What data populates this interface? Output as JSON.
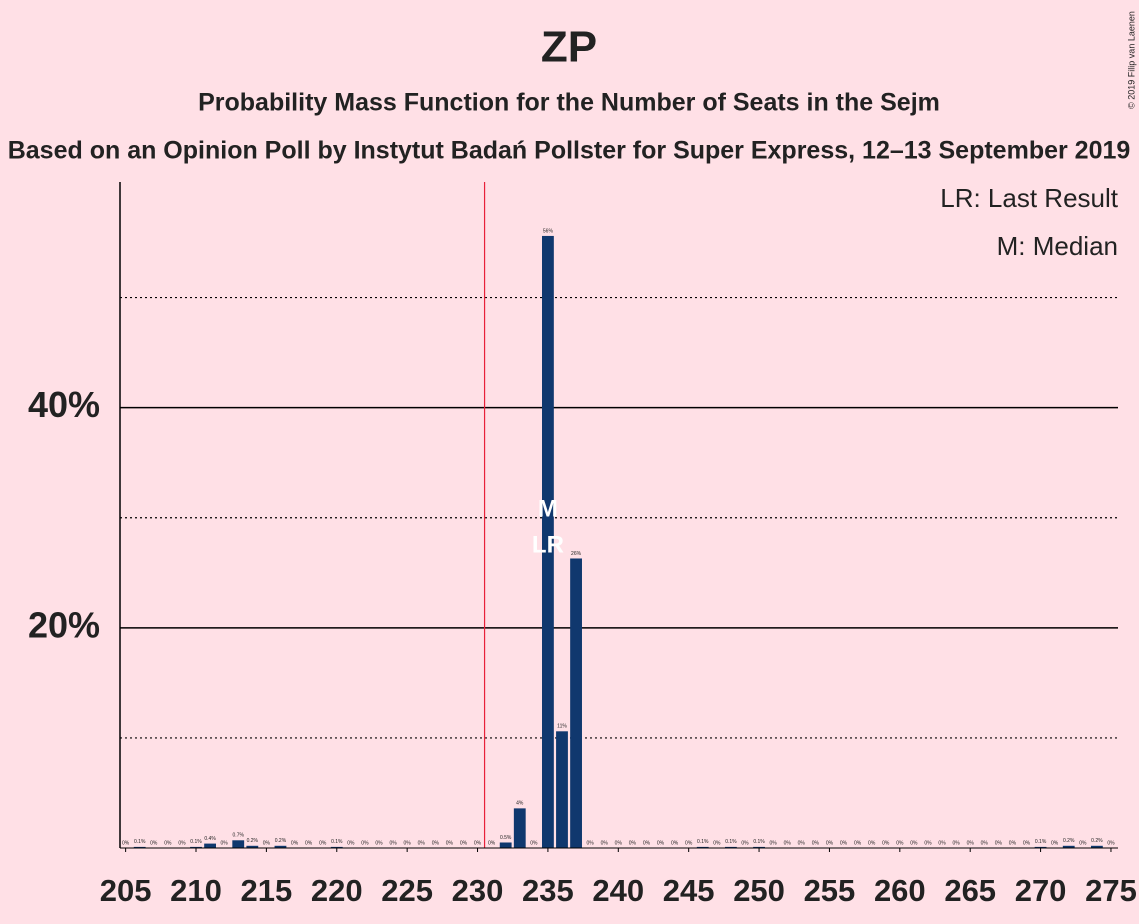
{
  "chart_data": {
    "type": "bar",
    "title": "ZP",
    "subtitle": "Probability Mass Function for the Number of Seats in the Sejm",
    "subtitle2": "Based on an Opinion Poll by Instytut Badań Pollster for Super Express, 12–13 September 2019",
    "copyright": "© 2019 Filip van Laenen",
    "legend": [
      "LR: Last Result",
      "M: Median"
    ],
    "legend_position": "upper right",
    "median_label": "M",
    "last_result_label": "LR",
    "median": 235,
    "last_result": 235,
    "majority": 231,
    "majority_color": "#e8203a",
    "color": "#10386e",
    "x": [
      205,
      206,
      207,
      208,
      209,
      210,
      211,
      212,
      213,
      214,
      215,
      216,
      217,
      218,
      219,
      220,
      221,
      222,
      223,
      224,
      225,
      226,
      227,
      228,
      229,
      230,
      231,
      232,
      233,
      234,
      235,
      236,
      237,
      238,
      239,
      240,
      241,
      242,
      243,
      244,
      245,
      246,
      247,
      248,
      249,
      250,
      251,
      252,
      253,
      254,
      255,
      256,
      257,
      258,
      259,
      260,
      261,
      262,
      263,
      264,
      265,
      266,
      267,
      268,
      269,
      270,
      271,
      272,
      273,
      274,
      275
    ],
    "values": [
      0,
      0.1,
      0,
      0,
      0,
      0.1,
      0.4,
      0,
      0.7,
      0.2,
      0,
      0.2,
      0,
      0,
      0,
      0.1,
      0,
      0,
      0,
      0,
      0,
      0,
      0,
      0,
      0,
      0,
      0,
      0.5,
      3.6,
      0,
      55.6,
      10.6,
      26.3,
      0,
      0,
      0,
      0,
      0,
      0,
      0,
      0,
      0.1,
      0,
      0.1,
      0,
      0.1,
      0,
      0,
      0,
      0,
      0,
      0,
      0,
      0,
      0,
      0,
      0,
      0,
      0,
      0,
      0,
      0,
      0,
      0,
      0,
      0.1,
      0,
      0.2,
      0,
      0.2,
      0
    ],
    "value_labels": [
      "0%",
      "0.1%",
      "0%",
      "0%",
      "0%",
      "0.1%",
      "0.4%",
      "0%",
      "0.7%",
      "0.2%",
      "0%",
      "0.2%",
      "0%",
      "0%",
      "0%",
      "0.1%",
      "0%",
      "0%",
      "0%",
      "0%",
      "0%",
      "0%",
      "0%",
      "0%",
      "0%",
      "0%",
      "0%",
      "0.5%",
      "4%",
      "0%",
      "56%",
      "11%",
      "26%",
      "0%",
      "0%",
      "0%",
      "0%",
      "0%",
      "0%",
      "0%",
      "0%",
      "0.1%",
      "0%",
      "0.1%",
      "0%",
      "0.1%",
      "0%",
      "0%",
      "0%",
      "0%",
      "0%",
      "0%",
      "0%",
      "0%",
      "0%",
      "0%",
      "0%",
      "0%",
      "0%",
      "0%",
      "0%",
      "0%",
      "0%",
      "0%",
      "0%",
      "0.1%",
      "0%",
      "0.2%",
      "0%",
      "0.2%",
      "0%"
    ],
    "xlim": [
      204.6,
      275.5
    ],
    "xticks": [
      205,
      210,
      215,
      220,
      225,
      230,
      235,
      240,
      245,
      250,
      255,
      260,
      265,
      270,
      275
    ],
    "ylim": [
      0,
      60.5
    ],
    "yticks": [
      {
        "value": 20,
        "label": "20%"
      },
      {
        "value": 40,
        "label": "40%"
      }
    ],
    "yminor": [
      10,
      30,
      50
    ],
    "grid": true
  }
}
